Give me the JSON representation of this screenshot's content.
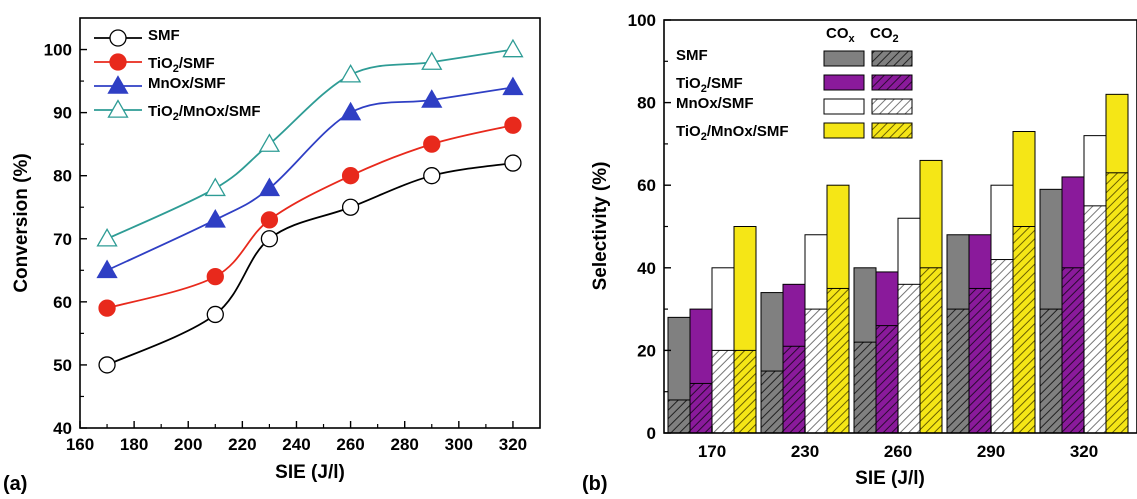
{
  "chart_data": [
    {
      "panel_label": "(a)",
      "type": "line",
      "xlabel": "SIE (J/l)",
      "ylabel": "Conversion (%)",
      "xlim": [
        160,
        330
      ],
      "ylim": [
        40,
        105
      ],
      "xticks": [
        160,
        180,
        200,
        220,
        240,
        260,
        280,
        300,
        320
      ],
      "yticks": [
        40,
        50,
        60,
        70,
        80,
        90,
        100
      ],
      "x": [
        170,
        210,
        230,
        260,
        290,
        320
      ],
      "legend_position": "top-left",
      "grid": false,
      "series": [
        {
          "name": "SMF",
          "name_parts": [
            "SMF"
          ],
          "marker": "open-circle",
          "color": "#000000",
          "values": [
            50,
            58,
            70,
            75,
            80,
            82
          ]
        },
        {
          "name": "TiO2/SMF",
          "name_parts": [
            "TiO",
            "2",
            "/SMF"
          ],
          "marker": "filled-circle",
          "color": "#e8291c",
          "values": [
            59,
            64,
            73,
            80,
            85,
            88
          ]
        },
        {
          "name": "MnOx/SMF",
          "name_parts": [
            "MnOx/SMF"
          ],
          "marker": "filled-triangle",
          "color": "#2f3fc4",
          "values": [
            65,
            73,
            78,
            90,
            92,
            94
          ]
        },
        {
          "name": "TiO2/MnOx/SMF",
          "name_parts": [
            "TiO",
            "2",
            "/MnOx/SMF"
          ],
          "marker": "open-triangle",
          "color": "#2e9c95",
          "values": [
            70,
            78,
            85,
            96,
            98,
            100
          ]
        }
      ]
    },
    {
      "panel_label": "(b)",
      "type": "bar",
      "xlabel": "SIE (J/l)",
      "ylabel": "Selectivity (%)",
      "ylim": [
        0,
        100
      ],
      "yticks": [
        0,
        20,
        40,
        60,
        80,
        100
      ],
      "categories": [
        "170",
        "230",
        "260",
        "290",
        "320"
      ],
      "legend_position": "top-right",
      "grid": false,
      "legend_columns": [
        {
          "name": "COx",
          "name_parts": [
            "CO",
            "x"
          ]
        },
        {
          "name": "CO2",
          "name_parts": [
            "CO",
            "2"
          ]
        }
      ],
      "series": [
        {
          "name": "SMF",
          "name_parts": [
            "SMF"
          ],
          "color": "#808080",
          "cox": [
            28,
            34,
            40,
            48,
            59
          ],
          "co2": [
            8,
            15,
            22,
            30,
            30
          ]
        },
        {
          "name": "TiO2/SMF",
          "name_parts": [
            "TiO",
            "2",
            "/SMF"
          ],
          "color": "#8a1a9b",
          "cox": [
            30,
            36,
            39,
            48,
            62
          ],
          "co2": [
            12,
            21,
            26,
            35,
            40
          ]
        },
        {
          "name": "MnOx/SMF",
          "name_parts": [
            "MnOx/SMF"
          ],
          "color": "#ffffff",
          "cox": [
            40,
            48,
            52,
            60,
            72
          ],
          "co2": [
            20,
            30,
            36,
            42,
            55
          ]
        },
        {
          "name": "TiO2/MnOx/SMF",
          "name_parts": [
            "TiO",
            "2",
            "/MnOx/SMF"
          ],
          "color": "#f5e616",
          "cox": [
            50,
            60,
            66,
            73,
            82
          ],
          "co2": [
            20,
            35,
            40,
            50,
            63
          ]
        }
      ]
    }
  ]
}
